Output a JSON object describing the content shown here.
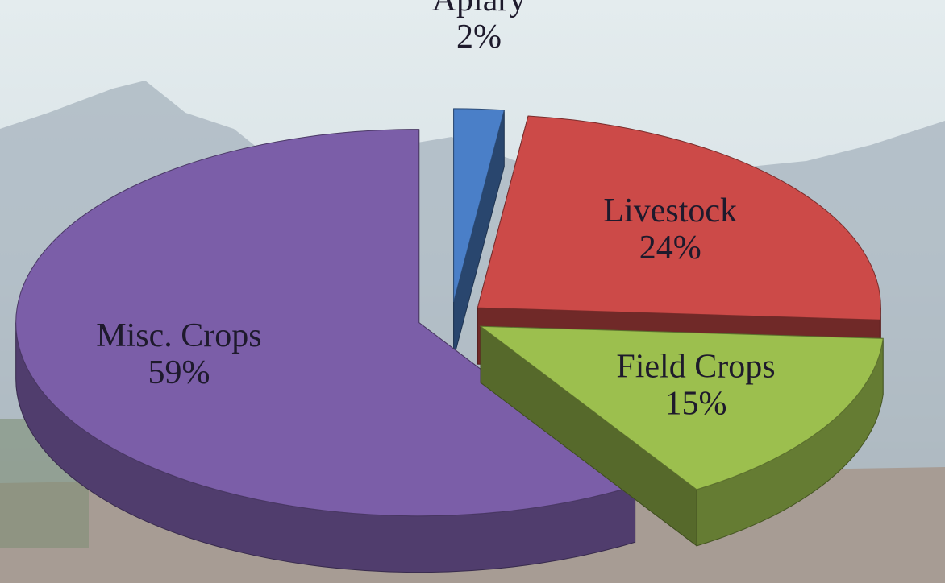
{
  "chart_data": {
    "type": "pie",
    "categories": [
      "Apiary",
      "Livestock",
      "Field Crops",
      "Misc. Crops"
    ],
    "values": [
      2,
      24,
      15,
      59
    ],
    "value_labels": [
      "2%",
      "24%",
      "15%",
      "59%"
    ],
    "colors": [
      "#4a7fc8",
      "#cc4a48",
      "#9cbf4e",
      "#7b5ea8"
    ]
  }
}
